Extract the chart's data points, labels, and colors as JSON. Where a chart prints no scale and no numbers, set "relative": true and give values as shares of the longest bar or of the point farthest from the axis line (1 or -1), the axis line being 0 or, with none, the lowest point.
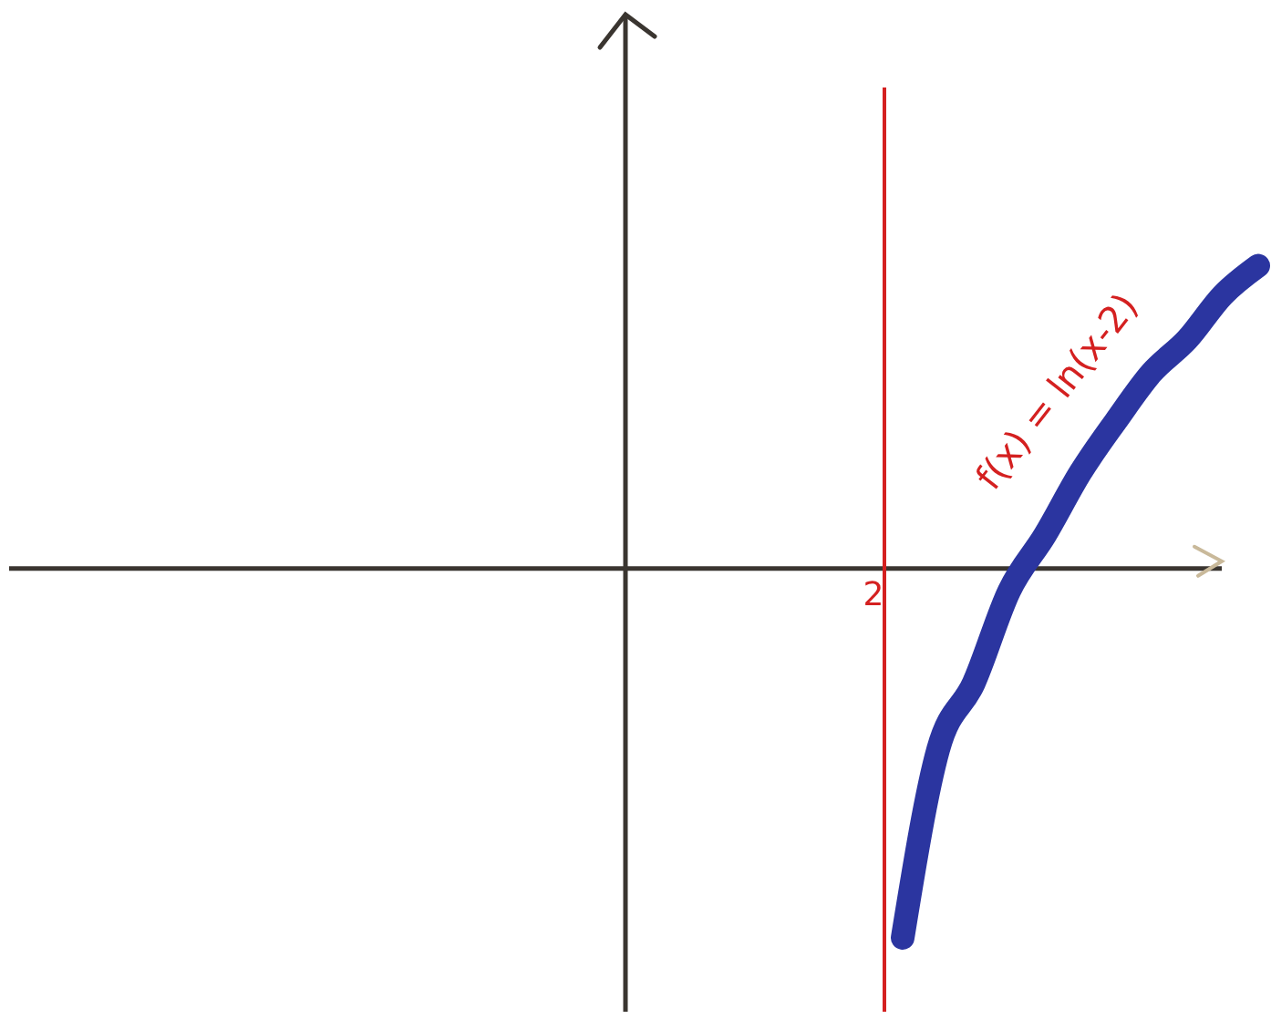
{
  "chart_data": {
    "type": "line",
    "relative": true,
    "categories": [
      null,
      null,
      null,
      null,
      null,
      null,
      null,
      null,
      null,
      null,
      null
    ],
    "series": [
      {
        "color": "#2b35a0",
        "values": [
          -1,
          -0.49,
          -0.31,
          -0.06,
          0.09,
          0.26,
          0.4,
          0.53,
          0.62,
          0.74,
          0.82
        ]
      }
    ],
    "annotations": [
      "2",
      "f(x) = ln(x-2)"
    ],
    "line_style": "solid"
  }
}
